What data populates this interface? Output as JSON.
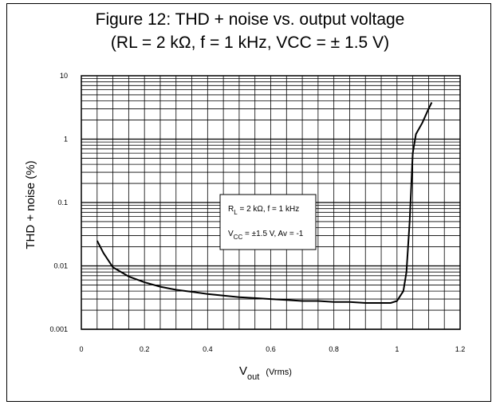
{
  "chart_data": {
    "type": "line",
    "title_line1": "Figure 12: THD + noise vs. output voltage",
    "title_line2": "(RL = 2 kΩ, f = 1 kHz, VCC = ± 1.5 V)",
    "ylabel": "THD + noise (%)",
    "xlabel_main": "V",
    "xlabel_sub": "out",
    "xlabel_unit": "(Vrms)",
    "xlim": [
      0,
      1.2
    ],
    "ylim": [
      0.001,
      10
    ],
    "yscale": "log",
    "grid": true,
    "x_ticks": [
      0,
      0.2,
      0.4,
      0.6,
      0.8,
      1,
      1.2
    ],
    "x_tick_labels": [
      "0",
      "0.2",
      "0.4",
      "0.6",
      "0.8",
      "1",
      "1.2"
    ],
    "y_ticks": [
      0.001,
      0.01,
      0.1,
      1,
      10
    ],
    "y_tick_labels": [
      "0.001",
      "0.01",
      "0.1",
      "1",
      "10"
    ],
    "annotation": {
      "line1_main": "R",
      "line1_sub": "L",
      "line1_rest": " = 2 kΩ, f = 1 kHz",
      "line2_main": "V",
      "line2_sub": "CC",
      "line2_rest": " = ±1.5 V, Av = -1"
    },
    "series": [
      {
        "x": [
          0.05,
          0.07,
          0.1,
          0.15,
          0.2,
          0.25,
          0.3,
          0.35,
          0.4,
          0.45,
          0.5,
          0.55,
          0.6,
          0.65,
          0.7,
          0.75,
          0.8,
          0.85,
          0.9,
          0.95,
          0.98,
          1.0,
          1.02,
          1.03,
          1.04,
          1.05,
          1.06,
          1.08,
          1.1,
          1.11
        ],
        "values": [
          0.025,
          0.016,
          0.0095,
          0.0068,
          0.0055,
          0.0047,
          0.0042,
          0.0039,
          0.0036,
          0.0034,
          0.0032,
          0.0031,
          0.003,
          0.0029,
          0.0028,
          0.0028,
          0.0027,
          0.0027,
          0.0026,
          0.0026,
          0.0026,
          0.0028,
          0.004,
          0.008,
          0.05,
          0.6,
          1.2,
          1.8,
          3.0,
          3.8
        ]
      }
    ]
  }
}
